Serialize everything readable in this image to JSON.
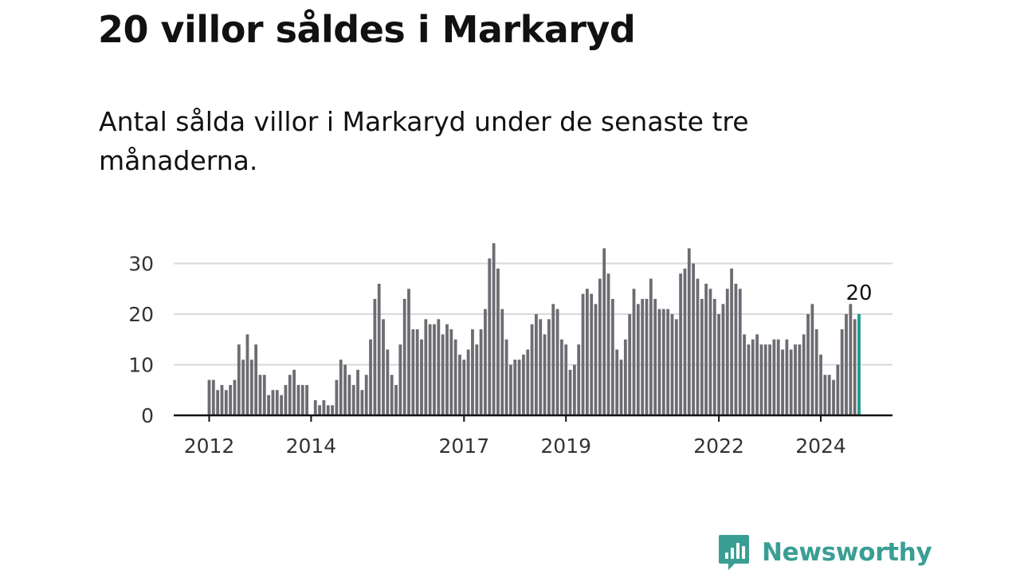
{
  "header": {
    "title": "20 villor såldes i Markaryd",
    "subtitle": "Antal sålda villor i Markaryd under de senaste tre månaderna."
  },
  "brand": {
    "name": "Newsworthy",
    "icon": "newsworthy-logo-icon",
    "color": "#3a9e94"
  },
  "colors": {
    "bar": "#6d6c72",
    "highlight": "#1a9c8f",
    "grid": "#d9d9d9",
    "axis": "#111111"
  },
  "chart_data": {
    "type": "bar",
    "start": "2012-01",
    "frequency": "monthly",
    "ylim": [
      0,
      35
    ],
    "yticks": [
      0,
      10,
      20,
      30
    ],
    "xticks": [
      "2012",
      "2014",
      "2017",
      "2019",
      "2022",
      "2024"
    ],
    "grid": true,
    "highlight_last": true,
    "last_value_label": "20",
    "values": [
      7,
      7,
      5,
      6,
      5,
      6,
      7,
      14,
      11,
      16,
      11,
      14,
      8,
      8,
      4,
      5,
      5,
      4,
      6,
      8,
      9,
      6,
      6,
      6,
      0,
      3,
      2,
      3,
      2,
      2,
      7,
      11,
      10,
      8,
      6,
      9,
      5,
      8,
      15,
      23,
      26,
      19,
      13,
      8,
      6,
      14,
      23,
      25,
      17,
      17,
      15,
      19,
      18,
      18,
      19,
      16,
      18,
      17,
      15,
      12,
      11,
      13,
      17,
      14,
      17,
      21,
      31,
      34,
      29,
      21,
      15,
      10,
      11,
      11,
      12,
      13,
      18,
      20,
      19,
      16,
      19,
      22,
      21,
      15,
      14,
      9,
      10,
      14,
      24,
      25,
      24,
      22,
      27,
      33,
      28,
      23,
      13,
      11,
      15,
      20,
      25,
      22,
      23,
      23,
      27,
      23,
      21,
      21,
      21,
      20,
      19,
      28,
      29,
      33,
      30,
      27,
      23,
      26,
      25,
      23,
      20,
      22,
      25,
      29,
      26,
      25,
      16,
      14,
      15,
      16,
      14,
      14,
      14,
      15,
      15,
      13,
      15,
      13,
      14,
      14,
      16,
      20,
      22,
      17,
      12,
      8,
      8,
      7,
      10,
      17,
      20,
      22,
      19,
      20
    ]
  }
}
